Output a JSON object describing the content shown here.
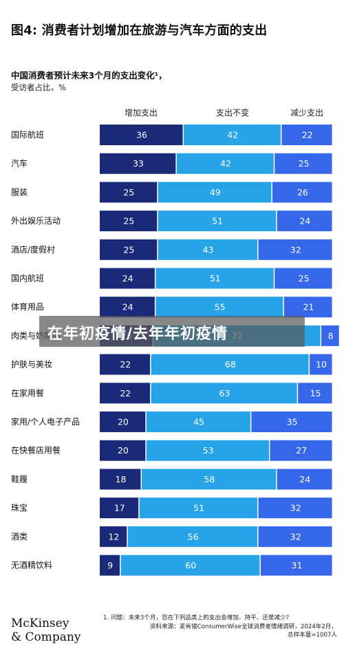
{
  "header": {
    "title": "图4: 消费者计划增加在旅游与汽车方面的支出",
    "subtitle": "中国消费者预计未来3个月的支出变化¹，",
    "unit": "受访者占比，%"
  },
  "colors": {
    "increase": "#1a2a78",
    "unchanged": "#27a4e8",
    "decrease": "#3667e8",
    "label": "#ffffff"
  },
  "chart_data": {
    "type": "bar",
    "stacked": true,
    "orientation": "horizontal",
    "categories": [
      "国际航班",
      "汽车",
      "服装",
      "外出娱乐活动",
      "酒店/度假村",
      "国内航班",
      "体育用品",
      "肉类与奶制品",
      "护肤与美妆",
      "在家用餐",
      "家用/个人电子产品",
      "在快餐店用餐",
      "鞋履",
      "珠宝",
      "酒类",
      "无酒精饮料"
    ],
    "series": [
      {
        "name": "增加支出",
        "values": [
          36,
          33,
          25,
          25,
          25,
          24,
          24,
          23,
          22,
          22,
          20,
          20,
          18,
          17,
          12,
          9
        ]
      },
      {
        "name": "支出不变",
        "values": [
          42,
          42,
          49,
          51,
          43,
          51,
          55,
          72,
          68,
          63,
          45,
          53,
          58,
          51,
          56,
          60
        ]
      },
      {
        "name": "减少支出",
        "values": [
          22,
          25,
          26,
          24,
          32,
          25,
          21,
          8,
          10,
          15,
          35,
          27,
          24,
          32,
          32,
          31
        ]
      }
    ],
    "xlim": [
      0,
      100
    ]
  },
  "footnote": {
    "note": "1.  问题：未来3个月，您在下列品类上的支出会增加、持平、还是减少?",
    "source": "资料来源：麦肯锡ConsumerWise全球消费者情绪调研，2024年2月，",
    "sample": "总样本量=1007人"
  },
  "logo": {
    "line1": "McKinsey",
    "line2": "& Company"
  },
  "overlay": {
    "text": "在年初疫情/去年年初疫情"
  }
}
